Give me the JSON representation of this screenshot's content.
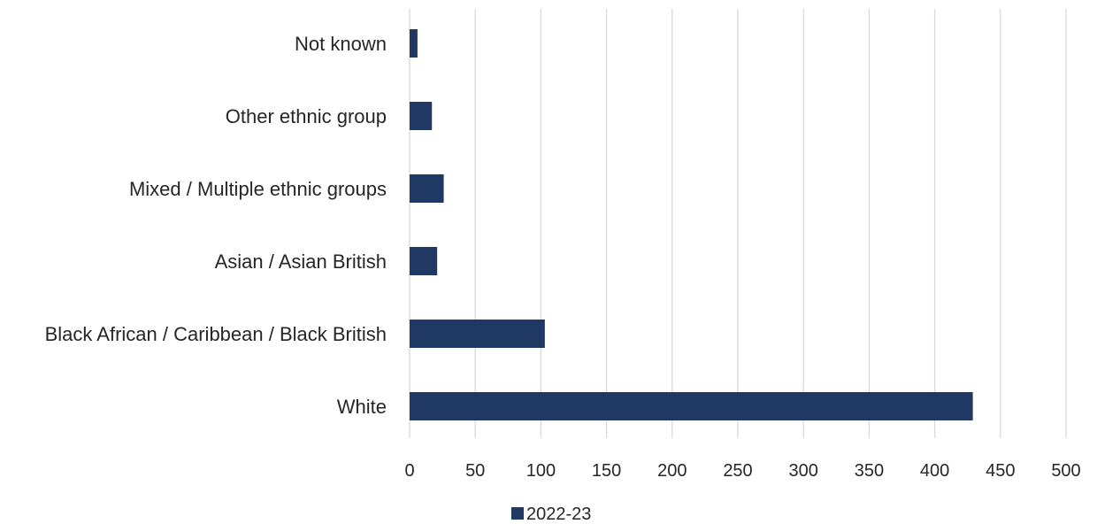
{
  "chart_data": {
    "type": "bar",
    "orientation": "horizontal",
    "categories": [
      "White",
      "Black African / Caribbean / Black British",
      "Asian / Asian British",
      "Mixed / Multiple ethnic groups",
      "Other ethnic group",
      "Not known"
    ],
    "series": [
      {
        "name": "2022-23",
        "color": "#203864",
        "values": [
          429,
          103,
          21,
          26,
          17,
          6
        ]
      }
    ],
    "xlim": [
      0,
      500
    ],
    "ticks": [
      "0",
      "50",
      "100",
      "150",
      "200",
      "250",
      "300",
      "350",
      "400",
      "450",
      "500"
    ],
    "grid": true,
    "legend_position": "bottom"
  }
}
